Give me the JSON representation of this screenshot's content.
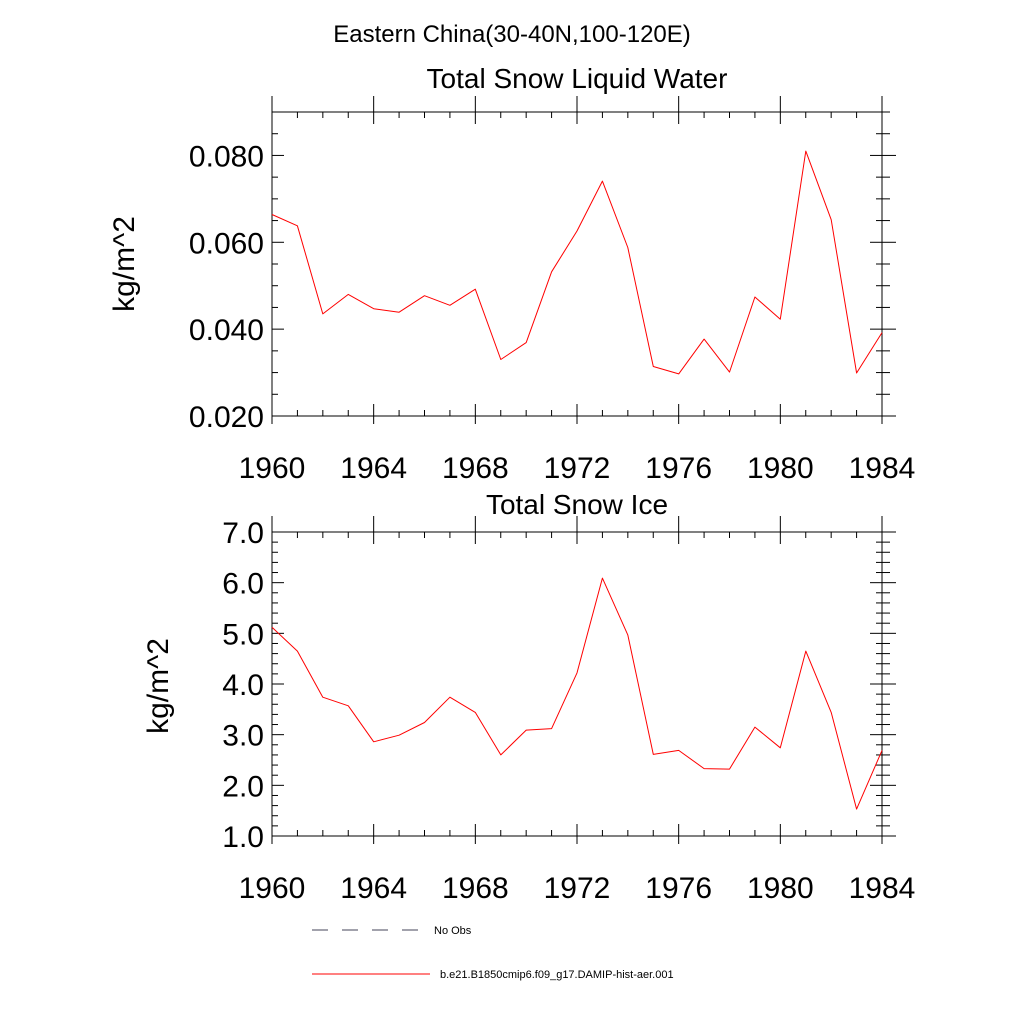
{
  "suptitle": "Eastern China(30-40N,100-120E)",
  "chart_data": [
    {
      "type": "line",
      "title": "Total Snow Liquid Water",
      "xlabel": "",
      "ylabel": "kg/m^2",
      "xlim": [
        1960,
        1984
      ],
      "ylim": [
        0.02,
        0.09
      ],
      "xticks": [
        1960,
        1964,
        1968,
        1972,
        1976,
        1980,
        1984
      ],
      "xtick_labels": [
        "1960",
        "1964",
        "1968",
        "1972",
        "1976",
        "1980",
        "1984"
      ],
      "yticks": [
        0.02,
        0.04,
        0.06,
        0.08
      ],
      "ytick_labels": [
        "0.020",
        "0.040",
        "0.060",
        "0.080"
      ],
      "x": [
        1960,
        1961,
        1962,
        1963,
        1964,
        1965,
        1966,
        1967,
        1968,
        1969,
        1970,
        1971,
        1972,
        1973,
        1974,
        1975,
        1976,
        1977,
        1978,
        1979,
        1980,
        1981,
        1982,
        1983,
        1984
      ],
      "series": [
        {
          "name": "b.e21.B1850cmip6.f09_g17.DAMIP-hist-aer.001",
          "color": "#ff0000",
          "values": [
            0.0664,
            0.0638,
            0.0435,
            0.048,
            0.0447,
            0.0439,
            0.0477,
            0.0455,
            0.0492,
            0.033,
            0.0369,
            0.0532,
            0.0626,
            0.0741,
            0.0588,
            0.0314,
            0.0297,
            0.0377,
            0.0301,
            0.0474,
            0.0423,
            0.081,
            0.0652,
            0.0299,
            0.0392
          ]
        }
      ]
    },
    {
      "type": "line",
      "title": "Total Snow Ice",
      "xlabel": "",
      "ylabel": "kg/m^2",
      "xlim": [
        1960,
        1984
      ],
      "ylim": [
        1.0,
        7.0
      ],
      "xticks": [
        1960,
        1964,
        1968,
        1972,
        1976,
        1980,
        1984
      ],
      "xtick_labels": [
        "1960",
        "1964",
        "1968",
        "1972",
        "1976",
        "1980",
        "1984"
      ],
      "yticks": [
        1.0,
        2.0,
        3.0,
        4.0,
        5.0,
        6.0,
        7.0
      ],
      "ytick_labels": [
        "1.0",
        "2.0",
        "3.0",
        "4.0",
        "5.0",
        "6.0",
        "7.0"
      ],
      "x": [
        1960,
        1961,
        1962,
        1963,
        1964,
        1965,
        1966,
        1967,
        1968,
        1969,
        1970,
        1971,
        1972,
        1973,
        1974,
        1975,
        1976,
        1977,
        1978,
        1979,
        1980,
        1981,
        1982,
        1983,
        1984
      ],
      "series": [
        {
          "name": "b.e21.B1850cmip6.f09_g17.DAMIP-hist-aer.001",
          "color": "#ff0000",
          "values": [
            5.12,
            4.65,
            3.74,
            3.57,
            2.86,
            2.99,
            3.24,
            3.74,
            3.44,
            2.6,
            3.09,
            3.12,
            4.22,
            6.09,
            4.97,
            2.61,
            2.69,
            2.33,
            2.32,
            3.15,
            2.74,
            4.65,
            3.44,
            1.53,
            2.69
          ]
        }
      ]
    }
  ],
  "legend": {
    "placement": "bottom",
    "entries": [
      {
        "label": "No Obs",
        "color": "#44445a",
        "style": "dashed"
      },
      {
        "label": "b.e21.B1850cmip6.f09_g17.DAMIP-hist-aer.001",
        "color": "#ff0000",
        "style": "solid"
      }
    ]
  }
}
